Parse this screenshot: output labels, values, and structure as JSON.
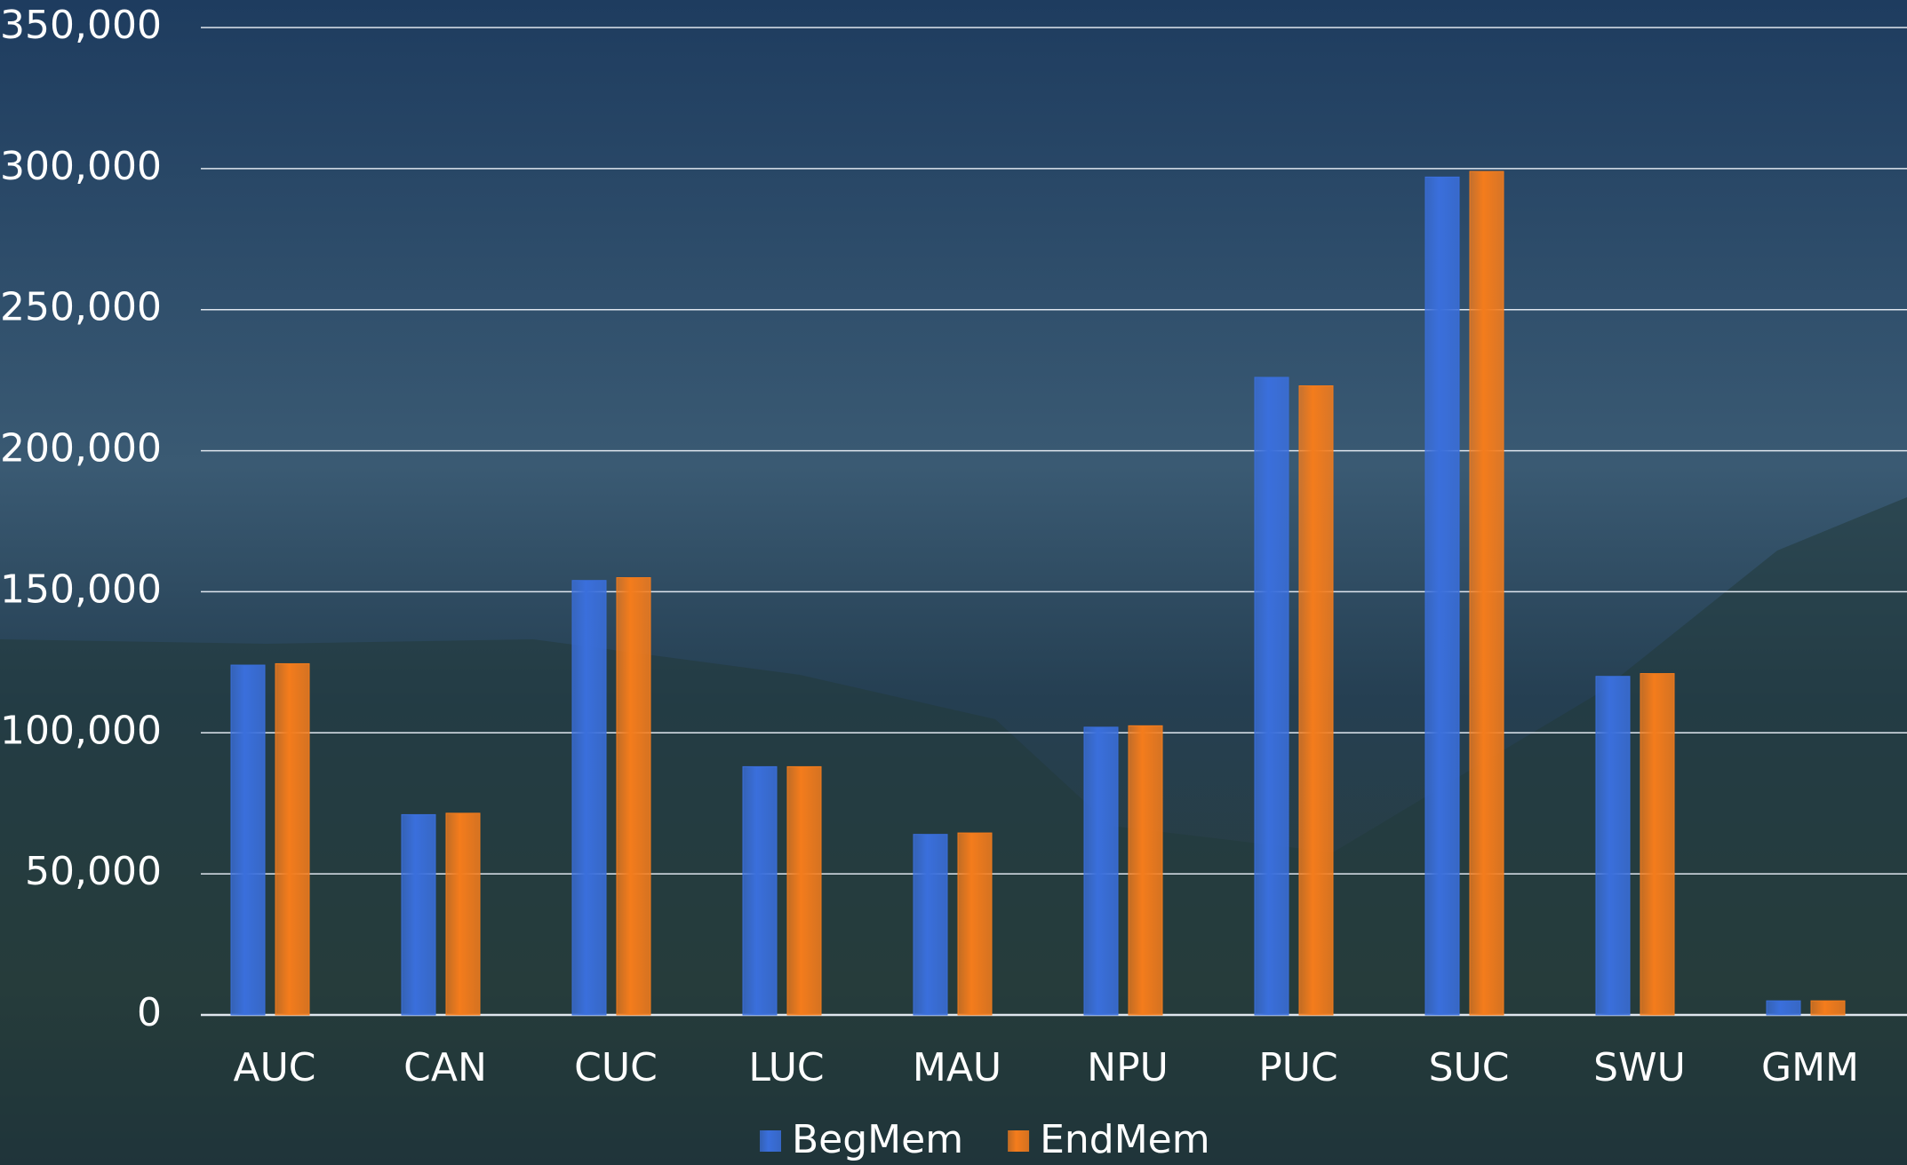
{
  "chart_data": {
    "type": "bar",
    "categories": [
      "AUC",
      "CAN",
      "CUC",
      "LUC",
      "MAU",
      "NPU",
      "PUC",
      "SUC",
      "SWU",
      "GMM"
    ],
    "series": [
      {
        "name": "BegMem",
        "color": "#3a6fdc",
        "values": [
          124000,
          71000,
          154000,
          88000,
          64000,
          102000,
          226000,
          297000,
          120000,
          5000
        ]
      },
      {
        "name": "EndMem",
        "color": "#f47c1c",
        "values": [
          124500,
          71500,
          155000,
          88000,
          64500,
          102500,
          223000,
          299000,
          121000,
          5000
        ]
      }
    ],
    "ylim": [
      0,
      350000
    ],
    "yticks": [
      0,
      {
        "value": 50000,
        "label": "50,000"
      },
      {
        "value": 100000,
        "label": "100,000"
      },
      {
        "value": 150000,
        "label": "150,000"
      },
      {
        "value": 200000,
        "label": "200,000"
      },
      {
        "value": 250000,
        "label": "250,000"
      },
      {
        "value": 300000,
        "label": "300,000"
      },
      {
        "value": 350000,
        "label": "350,000"
      }
    ],
    "grid": true,
    "legend": "bottom"
  }
}
